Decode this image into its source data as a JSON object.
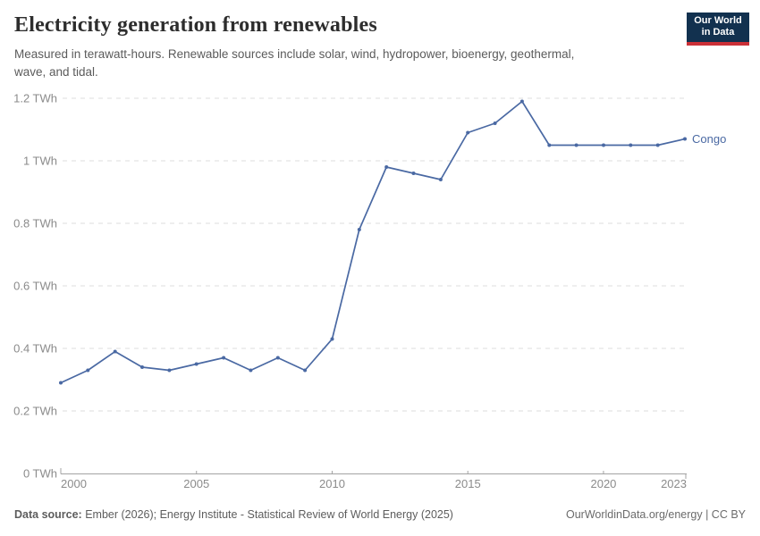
{
  "header": {
    "title": "Electricity generation from renewables",
    "subtitle_lines": [
      "Measured in terawatt-hours. Renewable sources include solar, wind, hydropower, bioenergy, geothermal,",
      "wave, and tidal."
    ],
    "logo": {
      "line1": "Our World",
      "line2": "in Data"
    }
  },
  "chart_data": {
    "type": "line",
    "title": "Electricity generation from renewables",
    "unit": "TWh",
    "x": [
      2000,
      2001,
      2002,
      2003,
      2004,
      2005,
      2006,
      2007,
      2008,
      2009,
      2010,
      2011,
      2012,
      2013,
      2014,
      2015,
      2016,
      2017,
      2018,
      2019,
      2020,
      2021,
      2022,
      2023
    ],
    "series": [
      {
        "name": "Congo",
        "color": "#4A69A3",
        "values": [
          0.29,
          0.33,
          0.39,
          0.34,
          0.33,
          0.35,
          0.37,
          0.33,
          0.37,
          0.33,
          0.43,
          0.78,
          0.98,
          0.96,
          0.94,
          1.09,
          1.12,
          1.19,
          1.05,
          1.05,
          1.05,
          1.05,
          1.05,
          1.07
        ]
      }
    ],
    "x_ticks": [
      2000,
      2005,
      2010,
      2015,
      2020,
      2023
    ],
    "y_ticks": [
      0,
      0.2,
      0.4,
      0.6,
      0.8,
      1,
      1.2
    ],
    "y_tick_suffix": " TWh",
    "xlim": [
      2000,
      2023
    ],
    "ylim": [
      0,
      1.2
    ],
    "grid": "horizontal-dashed",
    "legend": "series-end-label"
  },
  "footer": {
    "datasource_label": "Data source:",
    "datasource_text": "Ember (2026); Energy Institute - Statistical Review of World Energy (2025)",
    "right_text": "OurWorldinData.org/energy | CC BY"
  },
  "colors": {
    "line": "#4A69A3",
    "grid": "#DCDCDC",
    "axis": "#A3A3A3",
    "tick_label": "#8B8B8B",
    "title": "#2D2D2D",
    "subtitle": "#5B5B5B",
    "footer": "#5D5D5D",
    "logo_bg": "#12314F",
    "logo_accent": "#CB3037",
    "background": "#FFFFFF"
  }
}
